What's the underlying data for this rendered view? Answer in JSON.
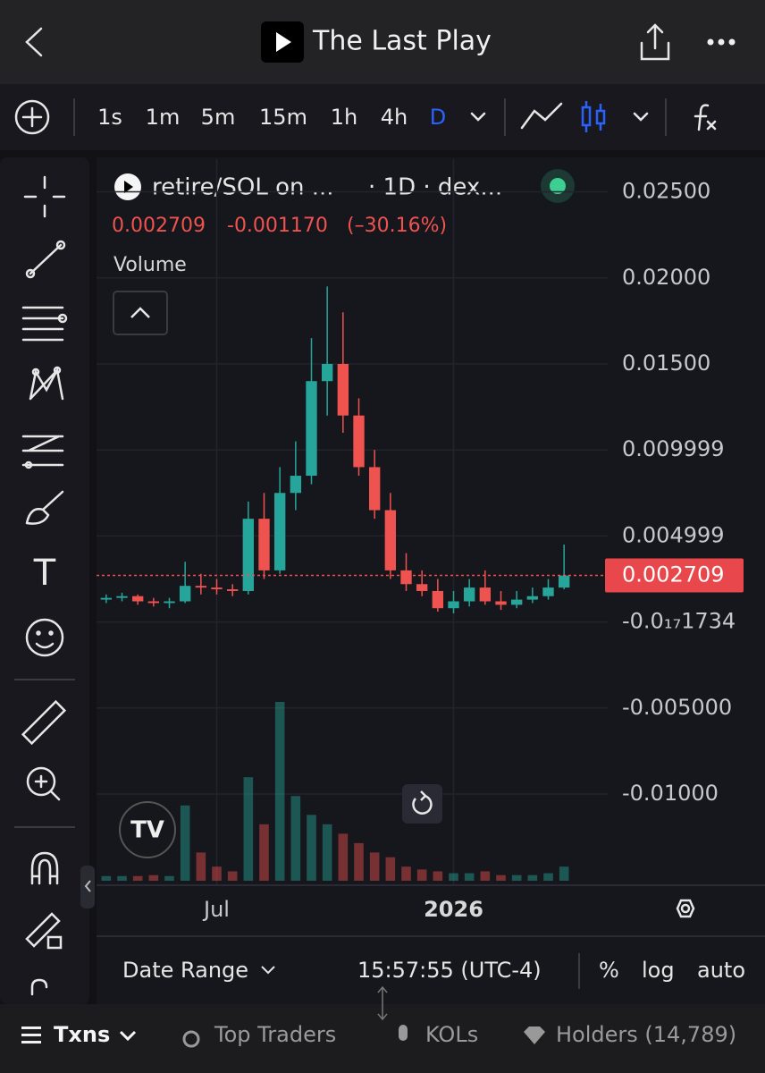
{
  "header": {
    "title": "The Last Play"
  },
  "timeframes": [
    "1s",
    "1m",
    "5m",
    "15m",
    "1h",
    "4h",
    "D"
  ],
  "chart_data": {
    "type": "candlestick",
    "title": "retire/SOL on ...",
    "subtitle": "· 1D · dex...",
    "summary": {
      "price": "0.002709",
      "change": "-0.001170",
      "change_percent": "(–30.16%)"
    },
    "volume_label": "Volume",
    "categories": [
      null,
      null,
      null,
      null,
      null,
      null,
      null,
      "Jul",
      null,
      null,
      null,
      null,
      null,
      null,
      null,
      null,
      null,
      null,
      null,
      null,
      null,
      null,
      "2026",
      null,
      null,
      null,
      null,
      null,
      null,
      null
    ],
    "open": [
      0.0013,
      0.0014,
      0.0015,
      0.0012,
      0.0011,
      0.0012,
      0.0021,
      0.002,
      0.0019,
      0.0018,
      0.006,
      0.003,
      0.0075,
      0.0085,
      0.014,
      0.015,
      0.012,
      0.009,
      0.0065,
      0.003,
      0.0022,
      0.0018,
      0.0008,
      0.0012,
      0.002,
      0.0012,
      0.001,
      0.0013,
      0.0015,
      0.002
    ],
    "high": [
      0.0016,
      0.0017,
      0.0016,
      0.0014,
      0.0014,
      0.0035,
      0.0028,
      0.0025,
      0.0022,
      0.007,
      0.0075,
      0.009,
      0.0105,
      0.0165,
      0.0195,
      0.018,
      0.013,
      0.01,
      0.0075,
      0.004,
      0.003,
      0.0025,
      0.0018,
      0.0025,
      0.003,
      0.0018,
      0.0018,
      0.002,
      0.0025,
      0.0045
    ],
    "low": [
      0.0011,
      0.0012,
      0.001,
      0.0009,
      0.0008,
      0.0011,
      0.0016,
      0.0016,
      0.0015,
      0.0016,
      0.0025,
      0.0028,
      0.0065,
      0.008,
      0.012,
      0.011,
      0.0085,
      0.006,
      0.0025,
      0.0018,
      0.0015,
      0.0006,
      0.0005,
      0.0009,
      0.001,
      0.0007,
      0.0008,
      0.0011,
      0.0013,
      0.0019
    ],
    "close": [
      0.0014,
      0.0015,
      0.0012,
      0.0011,
      0.0012,
      0.0021,
      0.002,
      0.0019,
      0.0018,
      0.006,
      0.003,
      0.0075,
      0.0085,
      0.014,
      0.015,
      0.012,
      0.009,
      0.0065,
      0.003,
      0.0022,
      0.0018,
      0.0008,
      0.0012,
      0.002,
      0.0012,
      0.001,
      0.0013,
      0.0015,
      0.002,
      0.0027
    ],
    "volume": [
      5,
      5,
      5,
      6,
      5,
      80,
      30,
      15,
      10,
      110,
      60,
      190,
      90,
      70,
      60,
      50,
      40,
      30,
      25,
      15,
      12,
      10,
      8,
      8,
      10,
      6,
      6,
      6,
      8,
      15
    ],
    "up_color": "#26a69a",
    "down_color": "#ef5350",
    "ylim": [
      -0.0153,
      0.0269
    ],
    "yticks": [
      {
        "value": 0.025,
        "label": "0.02500"
      },
      {
        "value": 0.02,
        "label": "0.02000"
      },
      {
        "value": 0.015,
        "label": "0.01500"
      },
      0.009999,
      0.004999,
      {
        "value": -1.734e-19,
        "label": "-0.0₁₇1734"
      },
      {
        "value": -0.005,
        "label": "-0.005000"
      },
      {
        "value": -0.01,
        "label": "-0.01000"
      }
    ],
    "last_price": {
      "value": 0.002709,
      "label": "0.002709"
    },
    "grid": true
  },
  "footer": {
    "date_range": "Date Range",
    "time": "15:57:55 (UTC-4)",
    "percent": "%",
    "log": "log",
    "auto": "auto"
  },
  "tabs": [
    "Txns",
    "Top Traders",
    "KOLs",
    "Holders (14,789)"
  ]
}
